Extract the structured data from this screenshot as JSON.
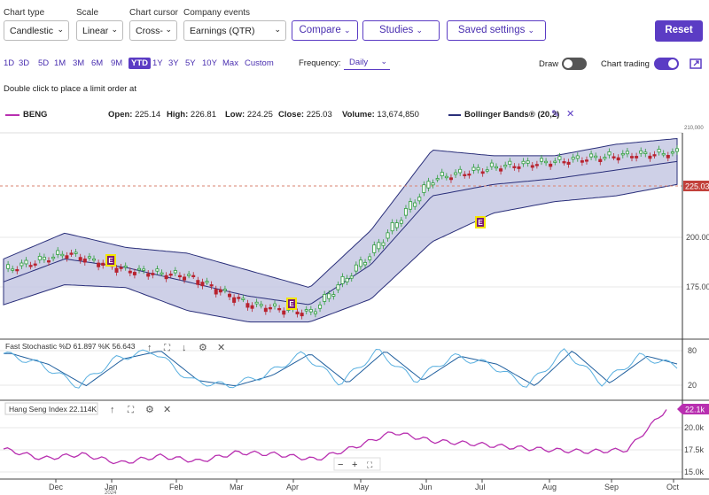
{
  "controls": {
    "chart_type": {
      "label": "Chart type",
      "value": "Candlestic"
    },
    "scale": {
      "label": "Scale",
      "value": "Linear"
    },
    "cursor": {
      "label": "Chart cursor",
      "value": "Cross-"
    },
    "events": {
      "label": "Company events",
      "value": "Earnings (QTR)"
    },
    "compare_label": "Compare",
    "studies_label": "Studies",
    "saved_label": "Saved settings",
    "reset_label": "Reset"
  },
  "ranges": [
    {
      "label": "1D"
    },
    {
      "label": "3D"
    },
    {
      "label": "5D"
    },
    {
      "label": "1M"
    },
    {
      "label": "3M"
    },
    {
      "label": "6M"
    },
    {
      "label": "9M"
    },
    {
      "label": "YTD",
      "active": true
    },
    {
      "label": "1Y"
    },
    {
      "label": "3Y"
    },
    {
      "label": "5Y"
    },
    {
      "label": "10Y"
    },
    {
      "label": "Max"
    },
    {
      "label": "Custom"
    }
  ],
  "frequency": {
    "label": "Frequency:",
    "value": "Daily"
  },
  "draw": {
    "label": "Draw",
    "on": false
  },
  "chart_trading": {
    "label": "Chart trading",
    "on": true
  },
  "hint": "Double click to place a limit order at",
  "legend": {
    "symbol": "BENG",
    "open_label": "Open:",
    "open": "225.14",
    "high_label": "High:",
    "high": "226.81",
    "low_label": "Low:",
    "low": "224.25",
    "close_label": "Close:",
    "close": "225.03",
    "volume_label": "Volume:",
    "volume": "13,674,850",
    "study": "Bollinger Bands® (20,2)"
  },
  "main_chart": {
    "price_tag": "225.03",
    "y_ticks": [
      "200.00",
      "175.00"
    ],
    "top_tick": "210,000",
    "earnings_marker": "E"
  },
  "stochastic": {
    "label": "Fast Stochastic %D 61.897 %K 56.643",
    "ticks": [
      "80",
      "20"
    ]
  },
  "hang_seng": {
    "label": "Hang Seng Index 22.114K",
    "tag": "22.1k",
    "ticks": [
      "20.0k",
      "17.5k",
      "15.0k"
    ],
    "zoom_minus": "−",
    "zoom_plus": "+"
  },
  "x_axis": [
    "Dec",
    "Jan",
    "Feb",
    "Mar",
    "Apr",
    "May",
    "Jun",
    "Jul",
    "Aug",
    "Sep",
    "Oct"
  ],
  "x_year": "2024",
  "colors": {
    "accent": "#5b3cc4",
    "up": "#2e9d3c",
    "down": "#b8232f",
    "band": "#c5c8e3",
    "hsi": "#b82fb0"
  },
  "chart_data": [
    {
      "type": "line",
      "title": "BENG",
      "x_labels": [
        "Dec",
        "Jan",
        "Feb",
        "Mar",
        "Apr",
        "May",
        "Jun",
        "Jul",
        "Aug",
        "Sep",
        "Oct"
      ],
      "series": [
        {
          "name": "BENG",
          "values": [
            184,
            190,
            184,
            182,
            172,
            169,
            190,
            216,
            220,
            222,
            224,
            225
          ]
        },
        {
          "name": "Bollinger Bands® (20,2)",
          "values": [
            180,
            188,
            185,
            180,
            175,
            172,
            186,
            210,
            214,
            216,
            219,
            222
          ]
        }
      ],
      "ylim": [
        160,
        232
      ]
    },
    {
      "type": "line",
      "title": "Fast Stochastic %D 61.897 %K 56.643",
      "series": [
        {
          "name": "Fast Stochastic",
          "values": [
            80,
            60,
            20,
            70,
            85,
            30,
            20,
            40,
            80,
            25,
            85,
            30,
            75,
            60,
            20,
            85,
            25,
            75,
            57
          ]
        }
      ],
      "ylim": [
        0,
        100
      ]
    },
    {
      "type": "line",
      "title": "Hang Seng Index 22.114K",
      "series": [
        {
          "name": "Hang Seng Index",
          "values": [
            17.6,
            16.5,
            17.0,
            16.0,
            16.8,
            16.2,
            17.2,
            17.0,
            16.4,
            17.8,
            19.5,
            18.5,
            18.2,
            17.8,
            17.5,
            17.3,
            17.5,
            22.1
          ]
        }
      ],
      "ylim": [
        14.5,
        22.5
      ]
    }
  ]
}
